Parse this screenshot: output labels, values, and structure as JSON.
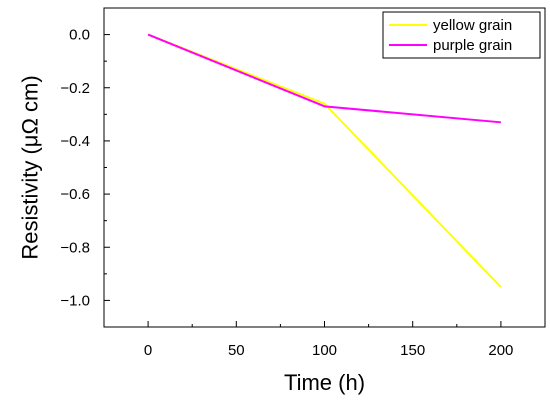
{
  "chart_data": {
    "type": "line",
    "title": "",
    "xlabel": "Time (h)",
    "ylabel": "Resistivity (μΩ cm)",
    "xlim": [
      -25,
      225
    ],
    "ylim": [
      -1.1,
      0.1
    ],
    "x_ticks": [
      0,
      50,
      100,
      150,
      200
    ],
    "y_ticks": [
      0.0,
      -0.2,
      -0.4,
      -0.6,
      -0.8,
      -1.0
    ],
    "x_tick_labels": [
      "0",
      "50",
      "100",
      "150",
      "200"
    ],
    "y_tick_labels": [
      "0.0",
      "−0.2",
      "−0.4",
      "−0.6",
      "−0.8",
      "−1.0"
    ],
    "grid": false,
    "legend_position": "top-right",
    "series": [
      {
        "name": "yellow grain",
        "color": "#ffff00",
        "x": [
          0,
          100,
          200
        ],
        "y": [
          0.0,
          -0.26,
          -0.95
        ]
      },
      {
        "name": "purple grain",
        "color": "#ff00ff",
        "x": [
          0,
          100,
          200
        ],
        "y": [
          0.0,
          -0.27,
          -0.33
        ]
      }
    ]
  }
}
